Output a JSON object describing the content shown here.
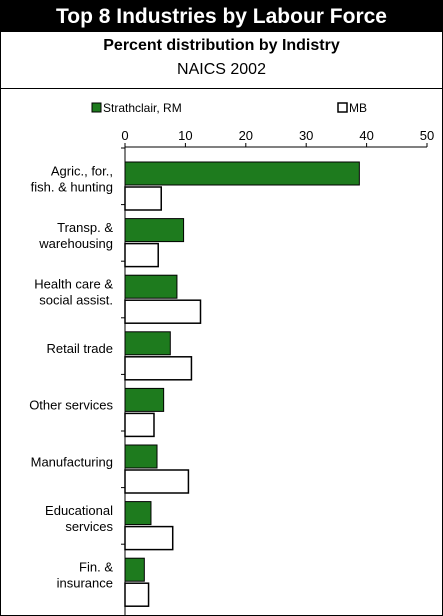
{
  "header": {
    "title": "Top 8 Industries by Labour Force",
    "subtitle": "Percent distribution by Indistry",
    "subtitle2": "NAICS 2002"
  },
  "colors": {
    "series1": "#1e7b1e",
    "series2": "#ffffff",
    "stroke": "#000000"
  },
  "chart_data": {
    "type": "bar",
    "orientation": "horizontal",
    "categories": [
      [
        "Agric., for.,",
        "fish. & hunting"
      ],
      [
        "Transp. &",
        "warehousing"
      ],
      [
        "Health care &",
        "social assist."
      ],
      [
        "Retail trade"
      ],
      [
        "Other services"
      ],
      [
        "Manufacturing"
      ],
      [
        "Educational",
        "services"
      ],
      [
        "Fin. &",
        "insurance"
      ]
    ],
    "series": [
      {
        "name": "Strathclair, RM",
        "values": [
          38.8,
          9.7,
          8.6,
          7.5,
          6.4,
          5.3,
          4.3,
          3.2
        ]
      },
      {
        "name": "MB",
        "values": [
          6.0,
          5.5,
          12.5,
          11.0,
          4.8,
          10.5,
          7.9,
          3.9
        ]
      }
    ],
    "xlim": [
      0,
      50
    ],
    "xticks": [
      "0",
      "10",
      "20",
      "30",
      "40",
      "50"
    ],
    "legend_position": "top",
    "grid": false
  }
}
